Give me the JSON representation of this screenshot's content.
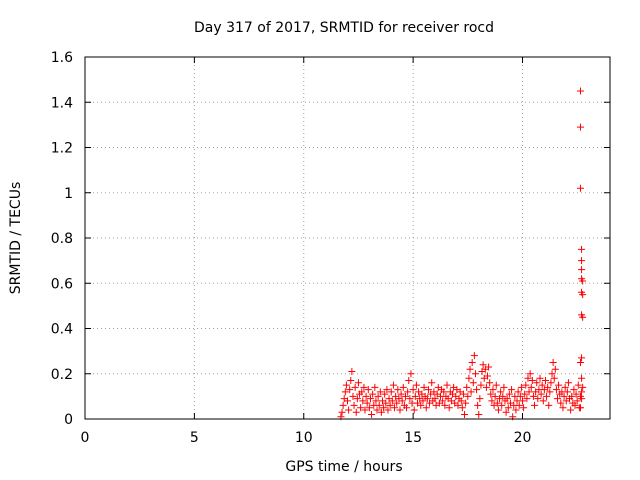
{
  "chart_data": {
    "type": "scatter",
    "title": "Day 317 of 2017, SRMTID for receiver rocd",
    "xlabel": "GPS time / hours",
    "ylabel": "SRMTID / TECUs",
    "xlim": [
      0,
      24
    ],
    "ylim": [
      0,
      1.6
    ],
    "grid": true,
    "x_ticks": [
      0,
      5,
      10,
      15,
      20
    ],
    "x_tick_labels": [
      "0",
      "5",
      "10",
      "15",
      "20"
    ],
    "y_ticks": [
      0,
      0.2,
      0.4,
      0.6,
      0.8,
      1,
      1.2,
      1.4,
      1.6
    ],
    "y_tick_labels": [
      "0",
      "0.2",
      "0.4",
      "0.6",
      "0.8",
      "1",
      "1.2",
      "1.4",
      "1.6"
    ],
    "marker": "+",
    "marker_color": "#ff0000",
    "series": [
      {
        "name": "SRMTID",
        "points": [
          [
            11.7,
            0.01
          ],
          [
            11.75,
            0.03
          ],
          [
            11.8,
            0.06
          ],
          [
            11.85,
            0.09
          ],
          [
            11.9,
            0.12
          ],
          [
            11.95,
            0.15
          ],
          [
            12.0,
            0.08
          ],
          [
            12.05,
            0.04
          ],
          [
            12.1,
            0.13
          ],
          [
            12.15,
            0.17
          ],
          [
            12.2,
            0.21
          ],
          [
            12.25,
            0.1
          ],
          [
            12.3,
            0.06
          ],
          [
            12.35,
            0.14
          ],
          [
            12.4,
            0.03
          ],
          [
            12.45,
            0.09
          ],
          [
            12.5,
            0.16
          ],
          [
            12.55,
            0.11
          ],
          [
            12.6,
            0.05
          ],
          [
            12.65,
            0.12
          ],
          [
            12.7,
            0.08
          ],
          [
            12.75,
            0.14
          ],
          [
            12.8,
            0.04
          ],
          [
            12.85,
            0.1
          ],
          [
            12.9,
            0.07
          ],
          [
            12.95,
            0.13
          ],
          [
            13.0,
            0.05
          ],
          [
            13.05,
            0.09
          ],
          [
            13.1,
            0.02
          ],
          [
            13.15,
            0.11
          ],
          [
            13.2,
            0.06
          ],
          [
            13.25,
            0.14
          ],
          [
            13.3,
            0.08
          ],
          [
            13.35,
            0.04
          ],
          [
            13.4,
            0.1
          ],
          [
            13.45,
            0.06
          ],
          [
            13.5,
            0.12
          ],
          [
            13.55,
            0.03
          ],
          [
            13.6,
            0.08
          ],
          [
            13.65,
            0.05
          ],
          [
            13.7,
            0.11
          ],
          [
            13.75,
            0.07
          ],
          [
            13.8,
            0.13
          ],
          [
            13.85,
            0.04
          ],
          [
            13.9,
            0.09
          ],
          [
            13.95,
            0.06
          ],
          [
            14.0,
            0.12
          ],
          [
            14.05,
            0.08
          ],
          [
            14.1,
            0.15
          ],
          [
            14.15,
            0.05
          ],
          [
            14.2,
            0.1
          ],
          [
            14.25,
            0.07
          ],
          [
            14.3,
            0.13
          ],
          [
            14.35,
            0.09
          ],
          [
            14.4,
            0.04
          ],
          [
            14.45,
            0.11
          ],
          [
            14.5,
            0.08
          ],
          [
            14.55,
            0.14
          ],
          [
            14.6,
            0.06
          ],
          [
            14.65,
            0.1
          ],
          [
            14.7,
            0.05
          ],
          [
            14.75,
            0.12
          ],
          [
            14.8,
            0.17
          ],
          [
            14.85,
            0.09
          ],
          [
            14.9,
            0.2
          ],
          [
            14.95,
            0.07
          ],
          [
            15.0,
            0.13
          ],
          [
            15.05,
            0.04
          ],
          [
            15.1,
            0.1
          ],
          [
            15.15,
            0.15
          ],
          [
            15.2,
            0.07
          ],
          [
            15.25,
            0.12
          ],
          [
            15.3,
            0.09
          ],
          [
            15.35,
            0.06
          ],
          [
            15.4,
            0.11
          ],
          [
            15.45,
            0.08
          ],
          [
            15.5,
            0.14
          ],
          [
            15.55,
            0.1
          ],
          [
            15.6,
            0.05
          ],
          [
            15.65,
            0.09
          ],
          [
            15.7,
            0.13
          ],
          [
            15.75,
            0.07
          ],
          [
            15.8,
            0.11
          ],
          [
            15.85,
            0.16
          ],
          [
            15.9,
            0.08
          ],
          [
            15.95,
            0.12
          ],
          [
            16.0,
            0.09
          ],
          [
            16.05,
            0.06
          ],
          [
            16.1,
            0.11
          ],
          [
            16.15,
            0.14
          ],
          [
            16.2,
            0.07
          ],
          [
            16.25,
            0.1
          ],
          [
            16.3,
            0.13
          ],
          [
            16.35,
            0.08
          ],
          [
            16.4,
            0.12
          ],
          [
            16.45,
            0.06
          ],
          [
            16.5,
            0.1
          ],
          [
            16.55,
            0.15
          ],
          [
            16.6,
            0.09
          ],
          [
            16.65,
            0.05
          ],
          [
            16.7,
            0.12
          ],
          [
            16.75,
            0.08
          ],
          [
            16.8,
            0.11
          ],
          [
            16.85,
            0.14
          ],
          [
            16.9,
            0.07
          ],
          [
            16.95,
            0.1
          ],
          [
            17.0,
            0.13
          ],
          [
            17.05,
            0.06
          ],
          [
            17.1,
            0.09
          ],
          [
            17.15,
            0.12
          ],
          [
            17.2,
            0.08
          ],
          [
            17.25,
            0.05
          ],
          [
            17.3,
            0.11
          ],
          [
            17.35,
            0.02
          ],
          [
            17.4,
            0.07
          ],
          [
            17.45,
            0.14
          ],
          [
            17.5,
            0.1
          ],
          [
            17.55,
            0.18
          ],
          [
            17.6,
            0.22
          ],
          [
            17.65,
            0.12
          ],
          [
            17.7,
            0.25
          ],
          [
            17.75,
            0.16
          ],
          [
            17.8,
            0.28
          ],
          [
            17.85,
            0.2
          ],
          [
            17.9,
            0.13
          ],
          [
            17.95,
            0.06
          ],
          [
            18.0,
            0.02
          ],
          [
            18.05,
            0.09
          ],
          [
            18.1,
            0.15
          ],
          [
            18.15,
            0.21
          ],
          [
            18.2,
            0.24
          ],
          [
            18.25,
            0.18
          ],
          [
            18.3,
            0.22
          ],
          [
            18.35,
            0.14
          ],
          [
            18.4,
            0.19
          ],
          [
            18.45,
            0.23
          ],
          [
            18.5,
            0.16
          ],
          [
            18.55,
            0.11
          ],
          [
            18.6,
            0.08
          ],
          [
            18.65,
            0.13
          ],
          [
            18.7,
            0.06
          ],
          [
            18.75,
            0.1
          ],
          [
            18.8,
            0.15
          ],
          [
            18.85,
            0.07
          ],
          [
            18.9,
            0.04
          ],
          [
            18.95,
            0.09
          ],
          [
            19.0,
            0.12
          ],
          [
            19.05,
            0.06
          ],
          [
            19.1,
            0.1
          ],
          [
            19.15,
            0.14
          ],
          [
            19.2,
            0.08
          ],
          [
            19.25,
            0.03
          ],
          [
            19.3,
            0.09
          ],
          [
            19.35,
            0.05
          ],
          [
            19.4,
            0.11
          ],
          [
            19.45,
            0.07
          ],
          [
            19.5,
            0.13
          ],
          [
            19.55,
            0.01
          ],
          [
            19.6,
            0.06
          ],
          [
            19.65,
            0.1
          ],
          [
            19.7,
            0.04
          ],
          [
            19.75,
            0.08
          ],
          [
            19.8,
            0.12
          ],
          [
            19.85,
            0.06
          ],
          [
            19.9,
            0.1
          ],
          [
            19.95,
            0.14
          ],
          [
            20.0,
            0.08
          ],
          [
            20.05,
            0.05
          ],
          [
            20.1,
            0.11
          ],
          [
            20.15,
            0.15
          ],
          [
            20.2,
            0.09
          ],
          [
            20.25,
            0.18
          ],
          [
            20.3,
            0.12
          ],
          [
            20.35,
            0.2
          ],
          [
            20.4,
            0.14
          ],
          [
            20.45,
            0.17
          ],
          [
            20.5,
            0.1
          ],
          [
            20.55,
            0.06
          ],
          [
            20.6,
            0.12
          ],
          [
            20.65,
            0.16
          ],
          [
            20.7,
            0.09
          ],
          [
            20.75,
            0.13
          ],
          [
            20.8,
            0.18
          ],
          [
            20.85,
            0.11
          ],
          [
            20.9,
            0.15
          ],
          [
            20.95,
            0.08
          ],
          [
            21.0,
            0.13
          ],
          [
            21.05,
            0.17
          ],
          [
            21.1,
            0.1
          ],
          [
            21.15,
            0.14
          ],
          [
            21.2,
            0.06
          ],
          [
            21.25,
            0.12
          ],
          [
            21.3,
            0.16
          ],
          [
            21.35,
            0.2
          ],
          [
            21.4,
            0.25
          ],
          [
            21.45,
            0.18
          ],
          [
            21.5,
            0.22
          ],
          [
            21.55,
            0.13
          ],
          [
            21.6,
            0.09
          ],
          [
            21.65,
            0.15
          ],
          [
            21.7,
            0.11
          ],
          [
            21.75,
            0.07
          ],
          [
            21.8,
            0.12
          ],
          [
            21.85,
            0.05
          ],
          [
            21.9,
            0.1
          ],
          [
            21.95,
            0.14
          ],
          [
            22.0,
            0.08
          ],
          [
            22.05,
            0.12
          ],
          [
            22.1,
            0.16
          ],
          [
            22.15,
            0.09
          ],
          [
            22.2,
            0.04
          ],
          [
            22.25,
            0.1
          ],
          [
            22.3,
            0.07
          ],
          [
            22.35,
            0.13
          ],
          [
            22.4,
            0.06
          ],
          [
            22.45,
            0.11
          ],
          [
            22.5,
            0.08
          ],
          [
            22.55,
            0.15
          ],
          [
            22.6,
            0.05
          ],
          [
            22.65,
            0.1
          ],
          [
            22.7,
            0.12
          ],
          [
            22.65,
            1.45
          ],
          [
            22.65,
            1.29
          ],
          [
            22.65,
            1.02
          ],
          [
            22.7,
            0.75
          ],
          [
            22.7,
            0.7
          ],
          [
            22.7,
            0.66
          ],
          [
            22.7,
            0.62
          ],
          [
            22.75,
            0.61
          ],
          [
            22.7,
            0.56
          ],
          [
            22.75,
            0.55
          ],
          [
            22.7,
            0.46
          ],
          [
            22.75,
            0.45
          ],
          [
            22.7,
            0.27
          ],
          [
            22.65,
            0.25
          ],
          [
            22.7,
            0.18
          ],
          [
            22.75,
            0.14
          ],
          [
            22.7,
            0.09
          ],
          [
            22.65,
            0.05
          ]
        ]
      }
    ]
  }
}
